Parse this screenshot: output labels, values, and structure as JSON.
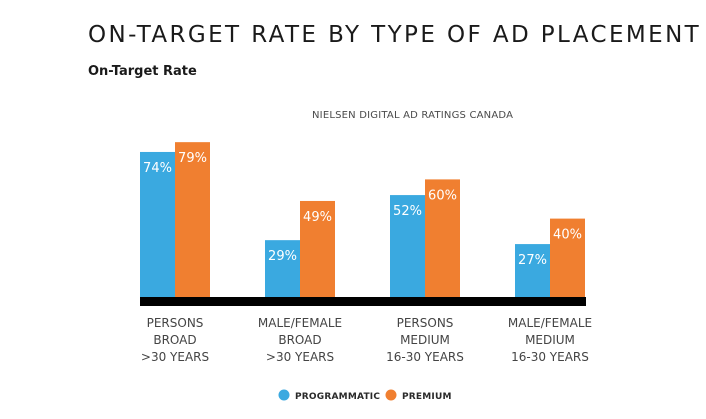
{
  "chart_data": {
    "type": "bar",
    "title": "ON-TARGET RATE BY TYPE OF AD PLACEMENT",
    "ylabel": "On-Target Rate",
    "source_note": "NIELSEN DIGITAL AD RATINGS CANADA",
    "categories": [
      [
        "PERSONS",
        "BROAD",
        ">30 YEARS"
      ],
      [
        "MALE/FEMALE",
        "BROAD",
        ">30 YEARS"
      ],
      [
        "PERSONS",
        "MEDIUM",
        "16-30 YEARS"
      ],
      [
        "MALE/FEMALE",
        "MEDIUM",
        "16-30 YEARS"
      ]
    ],
    "series": [
      {
        "name": "PROGRAMMATIC",
        "values": [
          74,
          29,
          52,
          27
        ],
        "labels": [
          "74%",
          "29%",
          "52%",
          "27%"
        ],
        "color": "#3aa9e0"
      },
      {
        "name": "PREMIUM",
        "values": [
          79,
          49,
          60,
          40
        ],
        "labels": [
          "79%",
          "49%",
          "60%",
          "40%"
        ],
        "color": "#f07f30"
      }
    ],
    "ylim": [
      0,
      100
    ],
    "grid": false,
    "legend": "bottom-center",
    "baseline_color": "#000000"
  }
}
